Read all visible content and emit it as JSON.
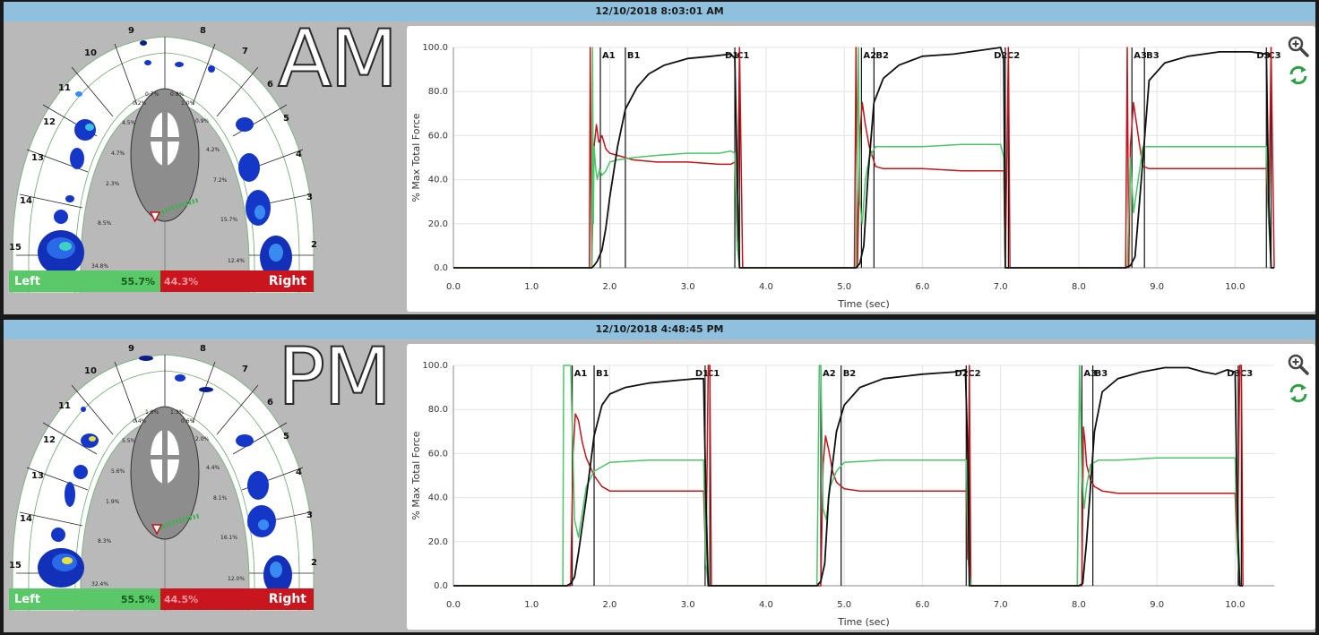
{
  "colors": {
    "total": "#111111",
    "left": "#4cc46a",
    "right": "#c0151d",
    "marker": "#111111",
    "accent_bar": "#8fc1df"
  },
  "panels": [
    {
      "id": "am",
      "timestamp": "12/10/2018 8:03:01 AM",
      "label": "AM",
      "left_label": "Left",
      "left_pct": "55.7%",
      "right_label": "Right",
      "right_pct": "44.3%",
      "tooth_numbers": [
        "9",
        "8",
        "10",
        "7",
        "11",
        "6",
        "12",
        "5",
        "13",
        "4",
        "14",
        "3",
        "15",
        "2"
      ],
      "region_pcts": [
        "0.7%",
        "0.8%",
        "0.2%",
        "1.0%",
        "4.5%",
        "0.9%",
        "4.7%",
        "4.2%",
        "2.3%",
        "7.2%",
        "8.5%",
        "15.7%",
        "34.8%",
        "12.4%"
      ],
      "chart_data": {
        "type": "line",
        "xlabel": "Time (sec)",
        "ylabel": "% Max Total Force",
        "xlim": [
          0,
          10.5
        ],
        "ylim": [
          0,
          100
        ],
        "x_ticks": [
          "0.0",
          "1.0",
          "2.0",
          "3.0",
          "4.0",
          "5.0",
          "6.0",
          "7.0",
          "8.0",
          "9.0",
          "10.0"
        ],
        "y_ticks": [
          "0.0",
          "20.0",
          "40.0",
          "60.0",
          "80.0",
          "100.0"
        ],
        "grid": true,
        "markers": [
          {
            "label": "A1",
            "x": 1.88
          },
          {
            "label": "B1",
            "x": 2.2
          },
          {
            "label": "C1",
            "x": 3.6
          },
          {
            "label": "D1",
            "x": 3.66
          },
          {
            "label": "A2",
            "x": 5.22
          },
          {
            "label": "B2",
            "x": 5.38
          },
          {
            "label": "C2",
            "x": 7.06
          },
          {
            "label": "D2",
            "x": 7.1
          },
          {
            "label": "A3",
            "x": 8.68
          },
          {
            "label": "B3",
            "x": 8.84
          },
          {
            "label": "C3",
            "x": 10.4
          },
          {
            "label": "D3",
            "x": 10.46
          }
        ],
        "series": [
          {
            "key": "total",
            "x": [
              0,
              1.77,
              1.8,
              1.84,
              1.9,
              1.95,
              2.0,
              2.1,
              2.2,
              2.35,
              2.5,
              2.7,
              3.0,
              3.3,
              3.55,
              3.6,
              3.63,
              3.66,
              3.7,
              5.15,
              5.2,
              5.25,
              5.3,
              5.38,
              5.5,
              5.7,
              6.0,
              6.4,
              6.8,
              7.0,
              7.04,
              7.06,
              7.1,
              8.6,
              8.66,
              8.72,
              8.8,
              8.9,
              9.1,
              9.4,
              9.8,
              10.2,
              10.4,
              10.43,
              10.46,
              10.5
            ],
            "y": [
              0,
              0,
              1,
              3,
              8,
              18,
              32,
              55,
              72,
              82,
              88,
              92,
              95,
              96,
              97,
              95,
              40,
              0,
              0,
              0,
              2,
              10,
              40,
              75,
              86,
              92,
              96,
              97,
              99,
              100,
              95,
              0,
              0,
              0,
              1,
              5,
              40,
              85,
              93,
              96,
              98,
              98,
              97,
              30,
              0,
              0
            ]
          },
          {
            "key": "left",
            "x": [
              0,
              1.77,
              1.78,
              1.79,
              1.8,
              1.82,
              1.84,
              1.87,
              1.9,
              1.95,
              2.0,
              2.1,
              2.3,
              2.6,
              3.0,
              3.4,
              3.55,
              3.6,
              3.63,
              3.66,
              3.7,
              5.15,
              5.18,
              5.2,
              5.23,
              5.27,
              5.32,
              5.4,
              5.5,
              6.0,
              6.5,
              7.0,
              7.04,
              7.06,
              7.1,
              8.62,
              8.66,
              8.7,
              8.74,
              8.78,
              8.82,
              8.9,
              9.2,
              9.6,
              10.0,
              10.4,
              10.43,
              10.46,
              10.5
            ],
            "y": [
              0,
              0,
              100,
              20,
              55,
              45,
              40,
              45,
              42,
              44,
              48,
              49,
              50,
              51,
              52,
              52,
              53,
              52,
              10,
              0,
              0,
              0,
              100,
              30,
              20,
              40,
              50,
              55,
              55,
              55,
              56,
              56,
              50,
              0,
              0,
              0,
              50,
              25,
              35,
              45,
              55,
              55,
              55,
              55,
              55,
              55,
              20,
              0,
              0
            ]
          },
          {
            "key": "right",
            "x": [
              0,
              1.74,
              1.75,
              1.77,
              1.79,
              1.8,
              1.83,
              1.86,
              1.9,
              1.95,
              2.0,
              2.1,
              2.3,
              2.6,
              3.0,
              3.4,
              3.55,
              3.6,
              3.63,
              3.66,
              3.7,
              5.13,
              5.15,
              5.17,
              5.2,
              5.23,
              5.27,
              5.32,
              5.4,
              5.5,
              6.0,
              6.5,
              7.0,
              7.04,
              7.06,
              7.1,
              7.12,
              8.6,
              8.62,
              8.64,
              8.66,
              8.7,
              8.74,
              8.78,
              8.82,
              8.9,
              9.2,
              9.6,
              10.0,
              10.4,
              10.43,
              10.46,
              10.5
            ],
            "y": [
              0,
              0,
              100,
              0,
              45,
              55,
              65,
              57,
              60,
              54,
              52,
              51,
              49,
              48,
              48,
              47,
              47,
              48,
              12,
              100,
              0,
              0,
              100,
              0,
              60,
              75,
              65,
              55,
              46,
              45,
              45,
              44,
              44,
              44,
              0,
              100,
              0,
              0,
              100,
              0,
              55,
              75,
              65,
              55,
              46,
              45,
              45,
              45,
              45,
              45,
              20,
              100,
              0
            ]
          }
        ]
      }
    },
    {
      "id": "pm",
      "timestamp": "12/10/2018 4:48:45 PM",
      "label": "PM",
      "left_label": "Left",
      "left_pct": "55.5%",
      "right_label": "Right",
      "right_pct": "44.5%",
      "tooth_numbers": [
        "9",
        "8",
        "10",
        "7",
        "11",
        "6",
        "12",
        "5",
        "13",
        "4",
        "14",
        "3",
        "15",
        "2"
      ],
      "region_pcts": [
        "1.0%",
        "1.3%",
        "0.4%",
        "0.6%",
        "5.5%",
        "2.0%",
        "5.6%",
        "4.4%",
        "1.9%",
        "8.1%",
        "8.3%",
        "16.1%",
        "32.4%",
        "12.0%"
      ],
      "chart_data": {
        "type": "line",
        "xlabel": "Time (sec)",
        "ylabel": "% Max Total Force",
        "xlim": [
          0,
          10.5
        ],
        "ylim": [
          0,
          100
        ],
        "x_ticks": [
          "0.0",
          "1.0",
          "2.0",
          "3.0",
          "4.0",
          "5.0",
          "6.0",
          "7.0",
          "8.0",
          "9.0",
          "10.0"
        ],
        "y_ticks": [
          "0.0",
          "20.0",
          "40.0",
          "60.0",
          "80.0",
          "100.0"
        ],
        "grid": true,
        "markers": [
          {
            "label": "A1",
            "x": 1.52
          },
          {
            "label": "B1",
            "x": 1.8
          },
          {
            "label": "C1",
            "x": 3.22
          },
          {
            "label": "D1",
            "x": 3.28
          },
          {
            "label": "A2",
            "x": 4.7
          },
          {
            "label": "B2",
            "x": 4.96
          },
          {
            "label": "C2",
            "x": 6.56
          },
          {
            "label": "D2",
            "x": 6.6
          },
          {
            "label": "A3",
            "x": 8.04
          },
          {
            "label": "B3",
            "x": 8.18
          },
          {
            "label": "C3",
            "x": 10.04
          },
          {
            "label": "D3",
            "x": 10.08
          }
        ],
        "series": [
          {
            "key": "total",
            "x": [
              0,
              1.45,
              1.5,
              1.55,
              1.6,
              1.7,
              1.8,
              1.9,
              2.0,
              2.2,
              2.5,
              2.8,
              3.1,
              3.2,
              3.23,
              3.26,
              3.3,
              4.65,
              4.7,
              4.75,
              4.8,
              4.9,
              5.0,
              5.2,
              5.5,
              6.0,
              6.4,
              6.55,
              6.58,
              6.6,
              6.65,
              8.0,
              8.05,
              8.1,
              8.2,
              8.3,
              8.5,
              8.8,
              9.1,
              9.4,
              9.6,
              9.75,
              9.9,
              10.0,
              10.03,
              10.06,
              10.1
            ],
            "y": [
              0,
              0,
              1,
              4,
              15,
              40,
              68,
              82,
              87,
              90,
              92,
              93,
              94,
              94,
              40,
              0,
              0,
              0,
              2,
              10,
              40,
              70,
              82,
              90,
              94,
              96,
              97,
              98,
              60,
              0,
              0,
              0,
              1,
              20,
              70,
              88,
              94,
              97,
              99,
              99,
              97,
              96,
              98,
              97,
              30,
              0,
              0
            ]
          },
          {
            "key": "left",
            "x": [
              0,
              1.4,
              1.41,
              1.45,
              1.5,
              1.55,
              1.6,
              1.7,
              1.8,
              2.0,
              2.5,
              3.0,
              3.2,
              3.23,
              3.26,
              3.3,
              4.65,
              4.68,
              4.7,
              4.73,
              4.77,
              4.82,
              4.9,
              5.0,
              5.5,
              6.0,
              6.5,
              6.56,
              6.59,
              6.62,
              6.65,
              7.98,
              8.01,
              8.04,
              8.07,
              8.1,
              8.15,
              8.25,
              8.5,
              9.0,
              9.5,
              10.0,
              10.03,
              10.06,
              10.1
            ],
            "y": [
              0,
              0,
              100,
              100,
              100,
              30,
              22,
              45,
              52,
              56,
              57,
              57,
              57,
              10,
              0,
              0,
              0,
              100,
              100,
              35,
              30,
              45,
              52,
              56,
              57,
              57,
              57,
              57,
              10,
              0,
              0,
              0,
              100,
              50,
              35,
              45,
              55,
              57,
              57,
              58,
              58,
              58,
              15,
              0,
              0
            ]
          },
          {
            "key": "right",
            "x": [
              0,
              1.5,
              1.53,
              1.56,
              1.6,
              1.65,
              1.7,
              1.8,
              1.9,
              2.0,
              2.5,
              3.0,
              3.2,
              3.23,
              3.26,
              3.28,
              3.3,
              4.7,
              4.73,
              4.76,
              4.8,
              4.85,
              4.9,
              5.0,
              5.2,
              5.5,
              6.0,
              6.5,
              6.56,
              6.58,
              6.6,
              6.62,
              8.04,
              8.06,
              8.08,
              8.1,
              8.15,
              8.2,
              8.3,
              8.5,
              9.0,
              9.5,
              10.0,
              10.03,
              10.06,
              10.08,
              10.1
            ],
            "y": [
              0,
              0,
              60,
              78,
              75,
              65,
              58,
              50,
              45,
              43,
              43,
              43,
              43,
              10,
              100,
              100,
              0,
              0,
              55,
              68,
              62,
              52,
              47,
              44,
              43,
              43,
              43,
              43,
              43,
              12,
              100,
              0,
              0,
              72,
              65,
              55,
              48,
              45,
              43,
              42,
              42,
              42,
              42,
              15,
              100,
              100,
              0
            ]
          }
        ]
      }
    }
  ]
}
